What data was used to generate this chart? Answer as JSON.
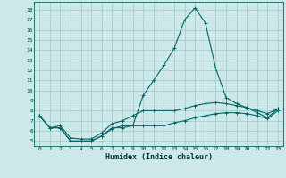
{
  "title": "",
  "xlabel": "Humidex (Indice chaleur)",
  "background_color": "#cce8e8",
  "grid_color": "#aacccc",
  "line_color": "#006666",
  "xlim": [
    -0.5,
    23.5
  ],
  "ylim": [
    4.5,
    18.8
  ],
  "xticks": [
    0,
    1,
    2,
    3,
    4,
    5,
    6,
    7,
    8,
    9,
    10,
    11,
    12,
    13,
    14,
    15,
    16,
    17,
    18,
    19,
    20,
    21,
    22,
    23
  ],
  "yticks": [
    5,
    6,
    7,
    8,
    9,
    10,
    11,
    12,
    13,
    14,
    15,
    16,
    17,
    18
  ],
  "line1_x": [
    0,
    1,
    2,
    3,
    4,
    5,
    6,
    7,
    8,
    9,
    10,
    11,
    12,
    13,
    14,
    15,
    16,
    17,
    18,
    19,
    20,
    21,
    22,
    23
  ],
  "line1_y": [
    7.5,
    6.3,
    6.3,
    5.0,
    5.0,
    5.0,
    5.5,
    6.3,
    6.3,
    6.5,
    9.5,
    11.0,
    12.5,
    14.2,
    17.0,
    18.2,
    16.7,
    12.2,
    9.3,
    8.7,
    8.3,
    7.8,
    7.3,
    8.2
  ],
  "line2_x": [
    0,
    1,
    2,
    3,
    4,
    5,
    6,
    7,
    8,
    9,
    10,
    11,
    12,
    13,
    14,
    15,
    16,
    17,
    18,
    19,
    20,
    21,
    22,
    23
  ],
  "line2_y": [
    7.5,
    6.3,
    6.5,
    5.3,
    5.2,
    5.2,
    5.8,
    6.7,
    7.0,
    7.5,
    8.0,
    8.0,
    8.0,
    8.0,
    8.2,
    8.5,
    8.7,
    8.8,
    8.7,
    8.5,
    8.3,
    8.0,
    7.7,
    8.2
  ],
  "line3_x": [
    0,
    1,
    2,
    3,
    4,
    5,
    6,
    7,
    8,
    9,
    10,
    11,
    12,
    13,
    14,
    15,
    16,
    17,
    18,
    19,
    20,
    21,
    22,
    23
  ],
  "line3_y": [
    7.5,
    6.3,
    6.3,
    5.0,
    5.0,
    5.0,
    5.5,
    6.2,
    6.5,
    6.5,
    6.5,
    6.5,
    6.5,
    6.8,
    7.0,
    7.3,
    7.5,
    7.7,
    7.8,
    7.8,
    7.7,
    7.5,
    7.2,
    8.0
  ]
}
